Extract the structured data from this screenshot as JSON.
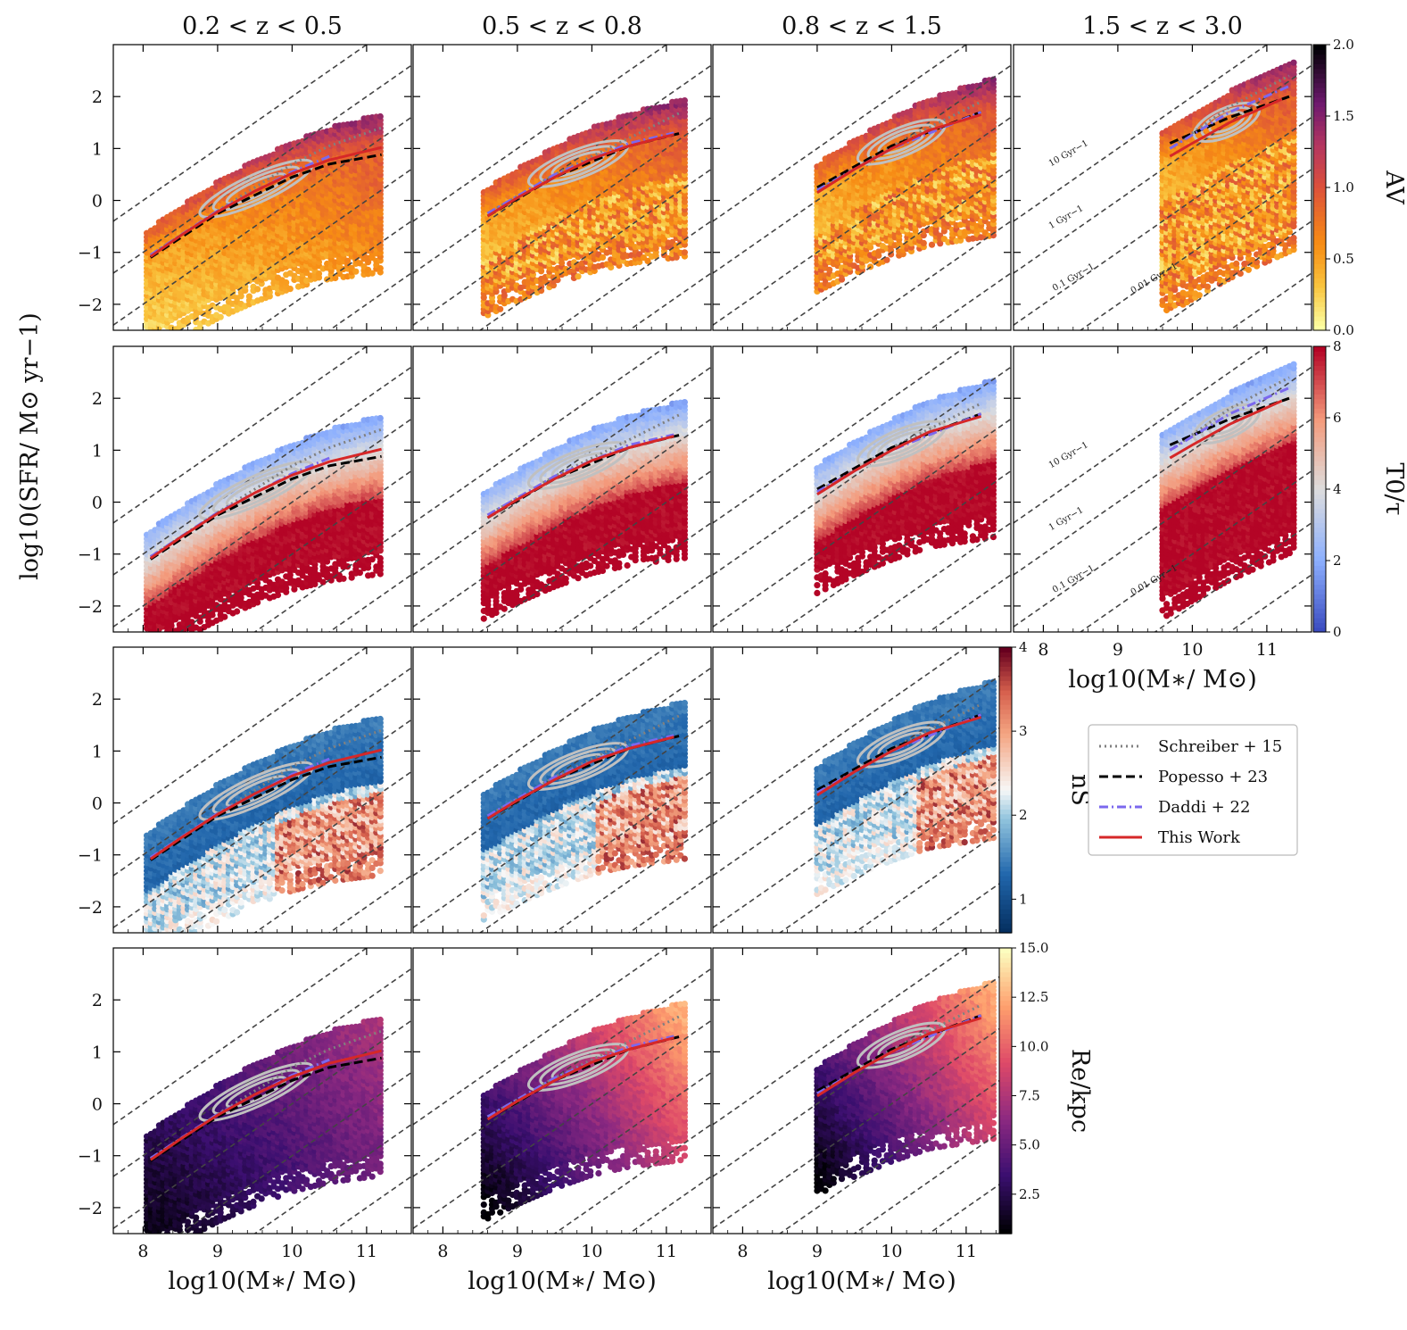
{
  "figure": {
    "ylabel": "log10(SFR/ M⊙ yr−1)",
    "xlabel": "log10(M∗/ M⊙)"
  },
  "chart_data": {
    "type": "scatter",
    "grid": false,
    "xlim": [
      7.6,
      11.6
    ],
    "ylim": [
      -2.5,
      3.0
    ],
    "xticks": [
      8,
      9,
      10,
      11
    ],
    "yticks": [
      -2,
      -1,
      0,
      1,
      2
    ],
    "column_titles": [
      "0.2 < z < 0.5",
      "0.5 < z < 0.8",
      "0.8 < z < 1.5",
      "1.5 < z < 3.0"
    ],
    "xtick_labels": [
      "8",
      "9",
      "10",
      "11"
    ],
    "ytick_labels": [
      "−2",
      "−1",
      "0",
      "1",
      "2"
    ],
    "row_colorbars": [
      {
        "label": "AV",
        "min": 0,
        "max": 2,
        "ticks": [
          "0.0",
          "0.5",
          "1.0",
          "1.5",
          "2.0"
        ],
        "cmap": "inferno_r"
      },
      {
        "label": "T0/τ",
        "min": 0,
        "max": 8,
        "ticks": [
          "0",
          "2",
          "4",
          "6",
          "8"
        ],
        "cmap": "coolwarm"
      },
      {
        "label": "nS",
        "min": 0.6,
        "max": 4,
        "ticks": [
          "1",
          "2",
          "3",
          "4"
        ],
        "cmap": "RdBu_r"
      },
      {
        "label": "Re/kpc",
        "min": 0.5,
        "max": 15,
        "ticks": [
          "2.5",
          "5.0",
          "7.5",
          "10.0",
          "12.5",
          "15.0"
        ],
        "cmap": "magma"
      }
    ],
    "ssfr_lines": [
      "10 Gyr−1",
      "1 Gyr−1",
      "0.1 Gyr−1",
      "0.01 Gyr−1"
    ],
    "ssfr_log_values": [
      -8,
      -9,
      -10,
      -11,
      -12,
      -13
    ],
    "redshift_bins": [
      {
        "name": "0.2 < z < 0.5",
        "mass_range": [
          8.05,
          11.2
        ],
        "this_work": [
          [
            8.1,
            -1.08
          ],
          [
            8.5,
            -0.68
          ],
          [
            9.0,
            -0.22
          ],
          [
            9.5,
            0.18
          ],
          [
            10.0,
            0.52
          ],
          [
            10.5,
            0.78
          ],
          [
            11.2,
            1.02
          ]
        ],
        "schreiber15": [
          [
            8.1,
            -1.05
          ],
          [
            9.0,
            -0.2
          ],
          [
            10.0,
            0.7
          ],
          [
            10.5,
            1.05
          ],
          [
            11.2,
            1.4
          ]
        ],
        "popesso23": [
          [
            8.1,
            -1.1
          ],
          [
            9.0,
            -0.25
          ],
          [
            10.0,
            0.45
          ],
          [
            10.5,
            0.7
          ],
          [
            11.2,
            0.88
          ]
        ],
        "daddi22": [
          [
            8.1,
            -1.05
          ],
          [
            9.0,
            -0.2
          ],
          [
            10.0,
            0.55
          ],
          [
            10.5,
            0.85
          ]
        ]
      },
      {
        "name": "0.5 < z < 0.8",
        "mass_range": [
          8.55,
          11.25
        ],
        "this_work": [
          [
            8.6,
            -0.3
          ],
          [
            9.0,
            0.05
          ],
          [
            9.5,
            0.45
          ],
          [
            10.0,
            0.8
          ],
          [
            10.5,
            1.05
          ],
          [
            11.1,
            1.27
          ]
        ],
        "schreiber15": [
          [
            8.6,
            -0.25
          ],
          [
            9.5,
            0.5
          ],
          [
            10.5,
            1.2
          ],
          [
            11.2,
            1.7
          ]
        ],
        "popesso23": [
          [
            8.6,
            -0.3
          ],
          [
            9.5,
            0.45
          ],
          [
            10.5,
            1.05
          ],
          [
            11.2,
            1.3
          ]
        ],
        "daddi22": [
          [
            8.6,
            -0.25
          ],
          [
            9.5,
            0.5
          ],
          [
            10.5,
            1.1
          ],
          [
            11.1,
            1.3
          ]
        ]
      },
      {
        "name": "0.8 < z < 1.5",
        "mass_range": [
          9.0,
          11.4
        ],
        "this_work": [
          [
            9.0,
            0.15
          ],
          [
            9.5,
            0.6
          ],
          [
            10.0,
            1.0
          ],
          [
            10.5,
            1.35
          ],
          [
            11.2,
            1.65
          ]
        ],
        "schreiber15": [
          [
            9.0,
            0.2
          ],
          [
            10.0,
            1.05
          ],
          [
            11.2,
            1.9
          ]
        ],
        "popesso23": [
          [
            9.0,
            0.25
          ],
          [
            10.0,
            1.05
          ],
          [
            11.2,
            1.7
          ]
        ],
        "daddi22": [
          [
            9.0,
            0.2
          ],
          [
            10.0,
            1.0
          ],
          [
            11.2,
            1.7
          ]
        ]
      },
      {
        "name": "1.5 < z < 3.0",
        "mass_range": [
          9.6,
          11.4
        ],
        "this_work": [
          [
            9.7,
            0.85
          ],
          [
            10.0,
            1.1
          ],
          [
            10.5,
            1.5
          ],
          [
            11.2,
            1.95
          ]
        ],
        "schreiber15": [
          [
            9.7,
            1.0
          ],
          [
            10.5,
            1.8
          ],
          [
            11.3,
            2.4
          ]
        ],
        "popesso23": [
          [
            9.7,
            1.1
          ],
          [
            10.5,
            1.6
          ],
          [
            11.3,
            2.0
          ]
        ],
        "daddi22": [
          [
            9.7,
            1.0
          ],
          [
            10.5,
            1.7
          ],
          [
            11.3,
            2.2
          ]
        ]
      }
    ],
    "legend": {
      "placement": "right, below third column",
      "entries": [
        {
          "name": "Schreiber + 15",
          "style": "dotted",
          "color": "#808080"
        },
        {
          "name": "Popesso + 23",
          "style": "dashed",
          "color": "#000000"
        },
        {
          "name": "Daddi + 22",
          "style": "dashdot",
          "color": "#7b68ee"
        },
        {
          "name": "This Work",
          "style": "solid",
          "color": "#d62728"
        }
      ]
    }
  }
}
